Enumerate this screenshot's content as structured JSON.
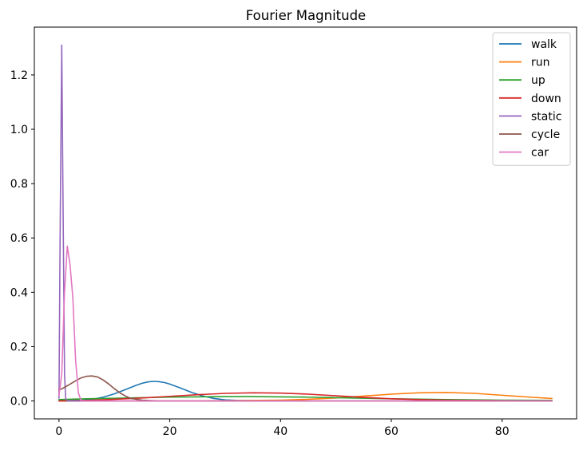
{
  "chart_data": {
    "type": "line",
    "title": "Fourier Magnitude",
    "xlabel": "",
    "ylabel": "",
    "xlim": [
      -4.45,
      93.45
    ],
    "ylim": [
      -0.066,
      1.376
    ],
    "x_ticks": [
      0,
      20,
      40,
      60,
      80
    ],
    "x_tick_labels": [
      "0",
      "20",
      "40",
      "60",
      "80"
    ],
    "y_ticks": [
      0.0,
      0.2,
      0.4,
      0.6,
      0.8,
      1.0,
      1.2
    ],
    "y_tick_labels": [
      "0.0",
      "0.2",
      "0.4",
      "0.6",
      "0.8",
      "1.0",
      "1.2"
    ],
    "grid": false,
    "legend_position": "top-right",
    "series": [
      {
        "name": "walk",
        "color": "#1f77b4",
        "x": [
          0,
          4,
          6,
          8,
          10,
          12,
          14,
          15,
          16,
          17,
          18,
          19,
          20,
          22,
          24,
          26,
          28,
          30,
          32,
          35,
          40,
          50,
          60,
          70,
          80,
          89
        ],
        "y": [
          0.001,
          0.002,
          0.006,
          0.014,
          0.026,
          0.042,
          0.058,
          0.065,
          0.07,
          0.072,
          0.071,
          0.068,
          0.062,
          0.047,
          0.031,
          0.018,
          0.009,
          0.004,
          0.002,
          0.001,
          0.0,
          0.0,
          0.0,
          0.0,
          0.0,
          0.0
        ]
      },
      {
        "name": "run",
        "color": "#ff7f0e",
        "x": [
          0,
          20,
          30,
          40,
          45,
          50,
          55,
          60,
          65,
          70,
          75,
          80,
          85,
          89
        ],
        "y": [
          0.0,
          0.0,
          0.001,
          0.003,
          0.006,
          0.011,
          0.018,
          0.025,
          0.03,
          0.031,
          0.028,
          0.021,
          0.014,
          0.009
        ]
      },
      {
        "name": "up",
        "color": "#2ca02c",
        "x": [
          0,
          5,
          10,
          15,
          20,
          25,
          30,
          35,
          40,
          45,
          50,
          55,
          60,
          70,
          80,
          89
        ],
        "y": [
          0.005,
          0.008,
          0.01,
          0.012,
          0.014,
          0.015,
          0.016,
          0.016,
          0.015,
          0.014,
          0.012,
          0.01,
          0.008,
          0.005,
          0.003,
          0.002
        ]
      },
      {
        "name": "down",
        "color": "#d62728",
        "x": [
          0,
          5,
          10,
          15,
          20,
          25,
          30,
          35,
          40,
          45,
          50,
          55,
          60,
          65,
          70,
          80,
          89
        ],
        "y": [
          0.0,
          0.002,
          0.006,
          0.011,
          0.017,
          0.023,
          0.028,
          0.03,
          0.029,
          0.025,
          0.019,
          0.013,
          0.008,
          0.005,
          0.003,
          0.001,
          0.0
        ]
      },
      {
        "name": "static",
        "color": "#9467bd",
        "x": [
          0,
          0.2,
          0.5,
          0.7,
          1.0,
          1.2,
          1.5,
          89
        ],
        "y": [
          0.01,
          0.6,
          1.31,
          0.8,
          0.1,
          0.01,
          0.0,
          0.0
        ]
      },
      {
        "name": "cycle",
        "color": "#8c564b",
        "x": [
          0,
          1,
          2,
          3,
          4,
          5,
          6,
          7,
          8,
          9,
          10,
          11,
          12,
          13,
          15,
          18,
          20,
          30,
          89
        ],
        "y": [
          0.04,
          0.05,
          0.062,
          0.074,
          0.085,
          0.091,
          0.092,
          0.088,
          0.077,
          0.062,
          0.045,
          0.03,
          0.018,
          0.009,
          0.003,
          0.0,
          0.0,
          0.0,
          0.0
        ]
      },
      {
        "name": "car",
        "color": "#e377c2",
        "x": [
          0,
          0.5,
          1.0,
          1.5,
          2.0,
          2.5,
          3.0,
          3.5,
          4.0,
          5.0,
          89
        ],
        "y": [
          0.02,
          0.1,
          0.4,
          0.57,
          0.5,
          0.38,
          0.15,
          0.03,
          0.0,
          0.0,
          0.0
        ]
      }
    ]
  }
}
